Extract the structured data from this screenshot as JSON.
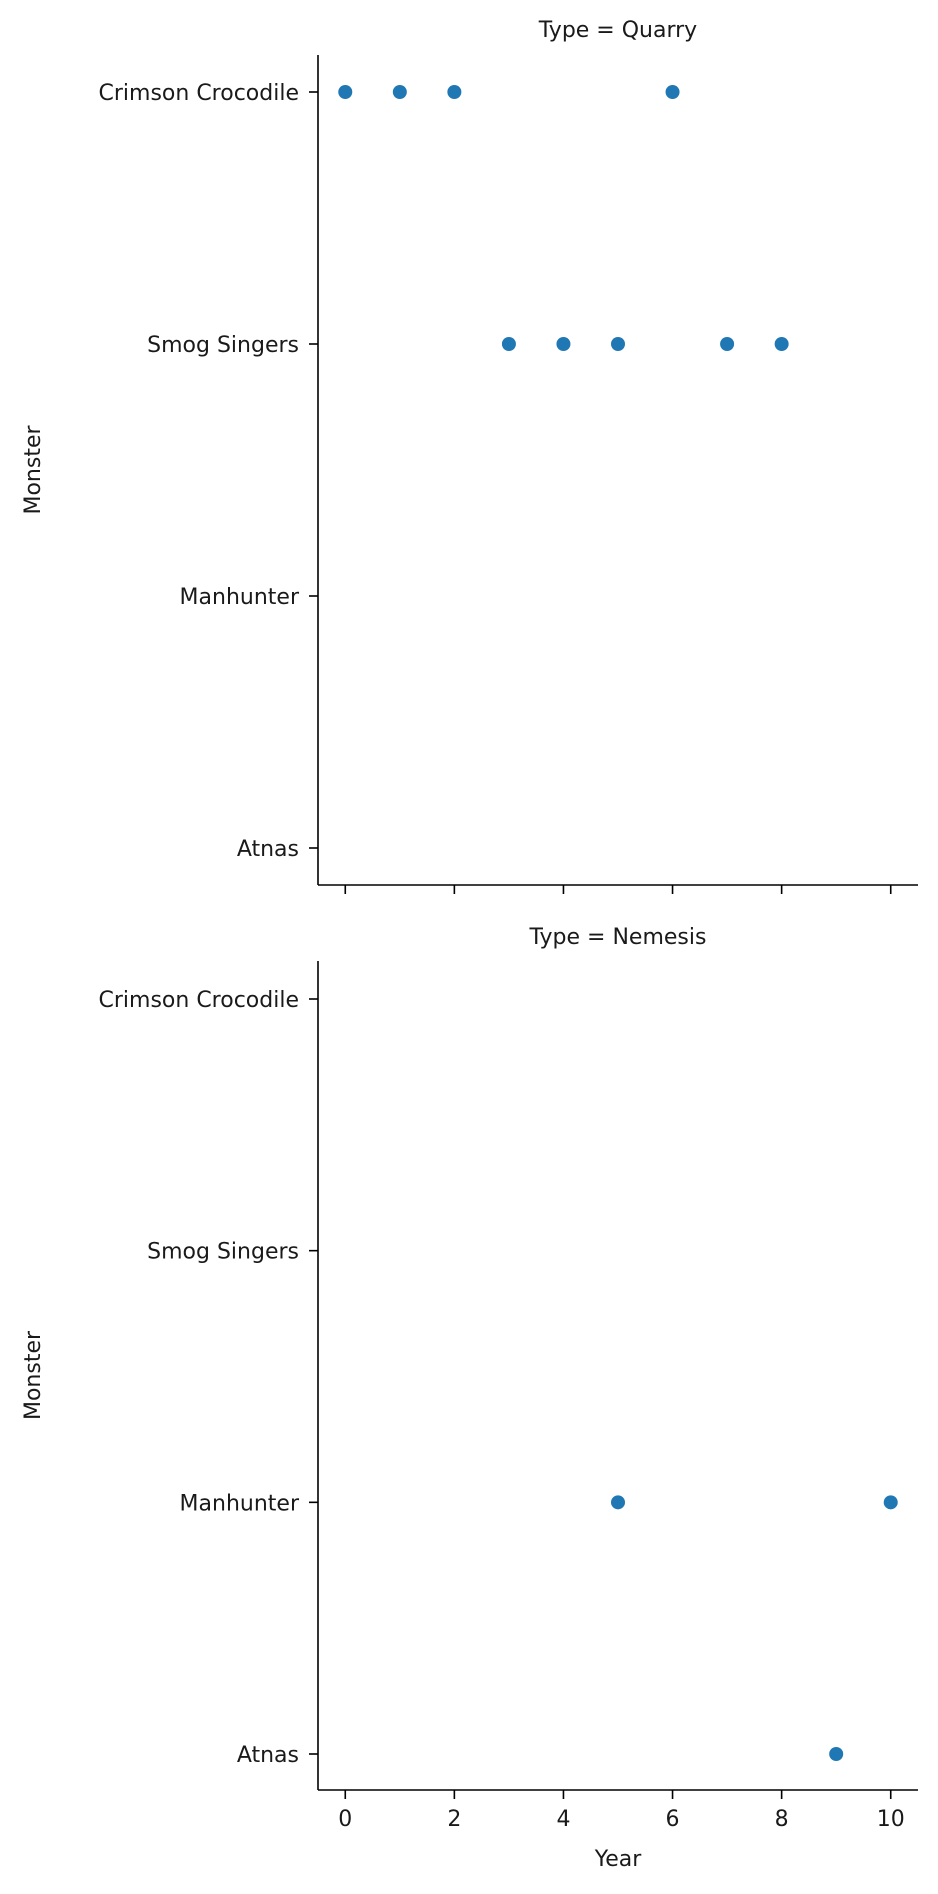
{
  "chart_data": [
    {
      "type": "scatter",
      "title": "Type = Quarry",
      "xlabel": "",
      "ylabel": "Monster",
      "categories": [
        "Crimson Crocodile",
        "Smog Singers",
        "Manhunter",
        "Atnas"
      ],
      "xlim": [
        -0.5,
        10.5
      ],
      "xticks": [
        0,
        2,
        4,
        6,
        8,
        10
      ],
      "show_xtick_labels": false,
      "grid": false,
      "color": "#1f77b4",
      "points": [
        {
          "x": 0,
          "y": "Crimson Crocodile"
        },
        {
          "x": 1,
          "y": "Crimson Crocodile"
        },
        {
          "x": 2,
          "y": "Crimson Crocodile"
        },
        {
          "x": 6,
          "y": "Crimson Crocodile"
        },
        {
          "x": 3,
          "y": "Smog Singers"
        },
        {
          "x": 4,
          "y": "Smog Singers"
        },
        {
          "x": 5,
          "y": "Smog Singers"
        },
        {
          "x": 7,
          "y": "Smog Singers"
        },
        {
          "x": 8,
          "y": "Smog Singers"
        }
      ]
    },
    {
      "type": "scatter",
      "title": "Type = Nemesis",
      "xlabel": "Year",
      "ylabel": "Monster",
      "categories": [
        "Crimson Crocodile",
        "Smog Singers",
        "Manhunter",
        "Atnas"
      ],
      "xlim": [
        -0.5,
        10.5
      ],
      "xticks": [
        0,
        2,
        4,
        6,
        8,
        10
      ],
      "show_xtick_labels": true,
      "grid": false,
      "color": "#1f77b4",
      "points": [
        {
          "x": 5,
          "y": "Manhunter"
        },
        {
          "x": 10,
          "y": "Manhunter"
        },
        {
          "x": 9,
          "y": "Atnas"
        }
      ]
    }
  ]
}
